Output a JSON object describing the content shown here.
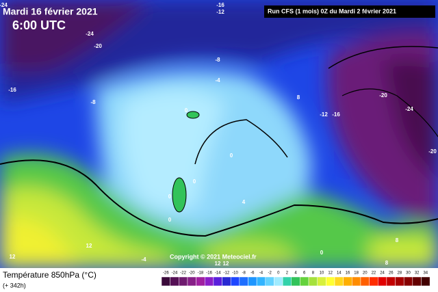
{
  "header": {
    "date": "Mardi 16 février 2021",
    "time": "6:00 UTC",
    "run": "Run CFS (1 mois) 0Z du Mardi 2 février 2021"
  },
  "footer": {
    "title": "Température 850hPa (°C)",
    "lead": "(+ 342h)",
    "copyright": "Copyright © 2021 Meteociel.fr"
  },
  "scale": {
    "labels": [
      -26,
      -24,
      -22,
      -20,
      -18,
      -16,
      -14,
      -12,
      -10,
      -8,
      -6,
      -4,
      -2,
      0,
      2,
      4,
      6,
      8,
      10,
      12,
      14,
      16,
      18,
      20,
      22,
      24,
      26,
      28,
      30,
      32,
      34
    ],
    "colors": [
      "#3a0a3a",
      "#551055",
      "#6e1a6e",
      "#871f87",
      "#a020a0",
      "#8a1ec8",
      "#5a1edc",
      "#2828d2",
      "#1e46ff",
      "#1e6eff",
      "#1e96ff",
      "#32b4ff",
      "#64d2ff",
      "#a0ebff",
      "#32d2aa",
      "#32c35a",
      "#64d23c",
      "#a5e13c",
      "#d7f03c",
      "#ffff32",
      "#ffd71e",
      "#ffaf00",
      "#ff8c00",
      "#ff5f00",
      "#ff2d00",
      "#e10000",
      "#c30000",
      "#a50000",
      "#870000",
      "#640000",
      "#420000"
    ]
  },
  "contour_labels": [
    "-24",
    "-16",
    "-12",
    "-24",
    "-20",
    "-16",
    "-8",
    "-8",
    "-4",
    "0",
    "8",
    "-12",
    "-16",
    "-20",
    "-24",
    "-20",
    "0",
    "0",
    "0",
    "0",
    "4",
    "-4",
    "0",
    "8",
    "12",
    "12",
    "12",
    "12",
    "8"
  ]
}
